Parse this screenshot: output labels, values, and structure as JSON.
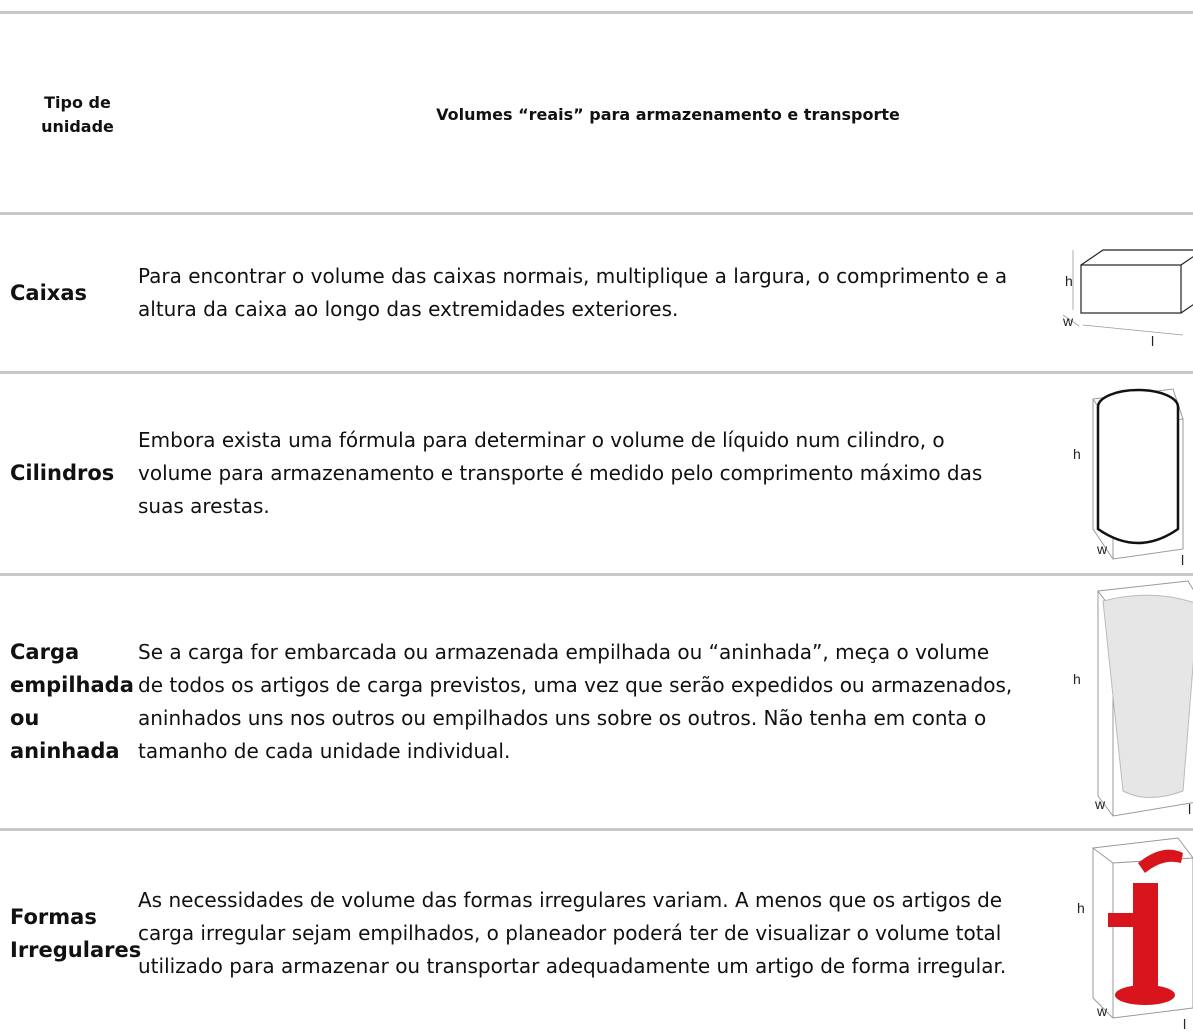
{
  "header": {
    "col1": "Tipo de unidade",
    "col2": "Volumes “reais” para armazenamento e transporte"
  },
  "table": {
    "rows": [
      {
        "type": "Caixas",
        "description": "Para encontrar o volume das caixas normais, multiplique a largura, o comprimento e a altura da caixa ao longo das extremidades exteriores.",
        "figure_labels": [
          "h",
          "w",
          "l"
        ]
      },
      {
        "type": "Cilindros",
        "description": "Embora exista uma fórmula para determinar o volume de líquido num cilindro, o volume para armazenamento e transporte é medido pelo comprimento máximo das suas arestas.",
        "figure_labels": [
          "h",
          "w",
          "l"
        ]
      },
      {
        "type": "Carga empilhada ou aninhada",
        "description": "Se a carga for embarcada ou armazenada empilhada ou “aninhada”, meça o volume de todos os artigos de carga previstos, uma vez que serão expedidos ou armazenados, aninhados uns nos outros ou empilhados uns sobre os outros. Não tenha em conta o tamanho de cada unidade individual.",
        "figure_labels": [
          "h",
          "w",
          "l"
        ]
      },
      {
        "type": "Formas Irregulares",
        "description": "As necessidades de volume das formas irregulares variam. A menos que os artigos de carga irregular sejam empilhados, o planeador poderá ter de visualizar o volume total utilizado para armazenar ou transportar adequadamente um artigo de forma irregular.",
        "figure_labels": [
          "h",
          "w",
          "l"
        ]
      }
    ]
  }
}
